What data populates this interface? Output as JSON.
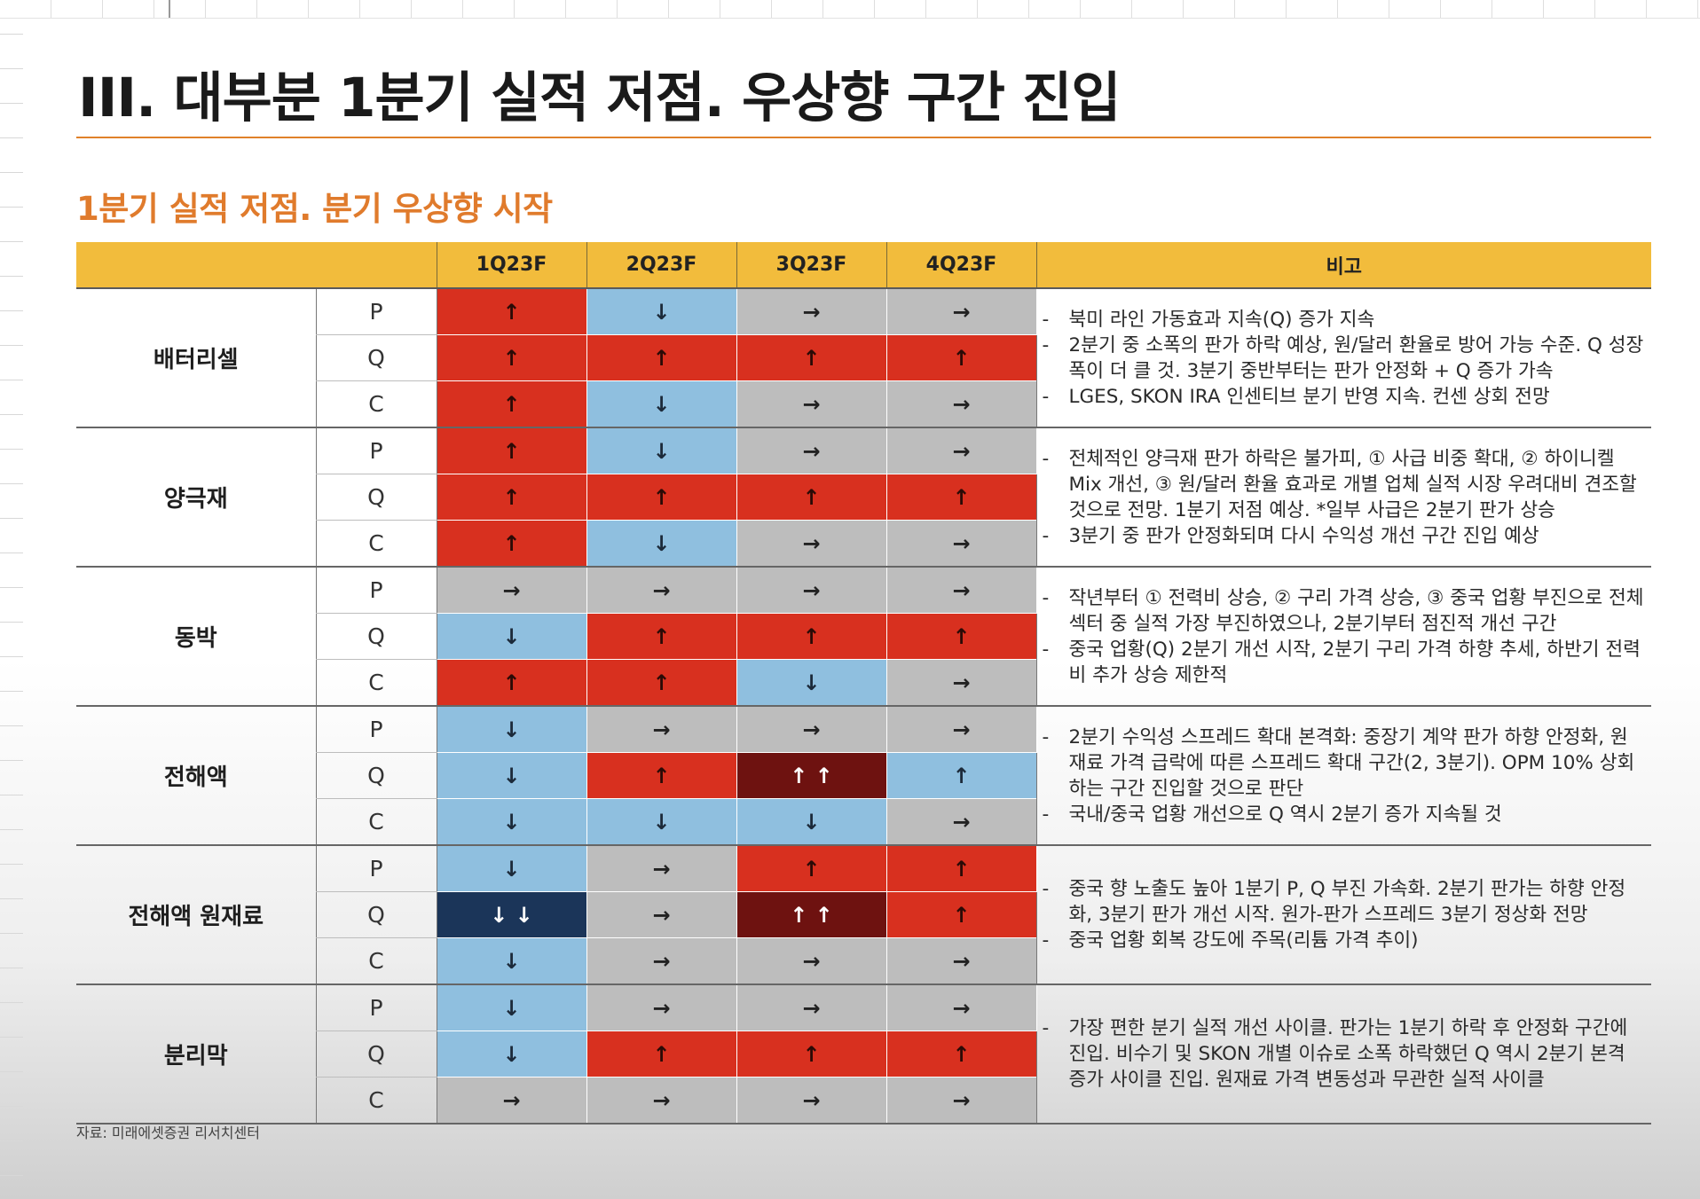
{
  "page": {
    "title": "III. 대부분 1분기 실적 저점. 우상향 구간 진입",
    "subtitle": "1분기 실적 저점. 분기 우상향 시작",
    "source": "자료: 미래에셋증권 리서치센터"
  },
  "colors": {
    "up": "#d8301f",
    "strong_up": "#6e1210",
    "down": "#8fbfdf",
    "strong_down": "#1b3559",
    "flat": "#bdbdbd",
    "header": "#f2bc3c",
    "accent": "#e07b2c"
  },
  "legend_glyphs": {
    "up": "↑",
    "strong_up": "↑ ↑",
    "down": "↓",
    "strong_down": "↓ ↓",
    "flat": "→"
  },
  "table": {
    "headers": [
      "1Q23F",
      "2Q23F",
      "3Q23F",
      "4Q23F",
      "비고"
    ],
    "groups": [
      {
        "category": "배터리셀",
        "rows": [
          {
            "metric": "P",
            "values": [
              "up",
              "down",
              "flat",
              "flat"
            ]
          },
          {
            "metric": "Q",
            "values": [
              "up",
              "up",
              "up",
              "up"
            ]
          },
          {
            "metric": "C",
            "values": [
              "up",
              "down",
              "flat",
              "flat"
            ]
          }
        ],
        "notes": [
          {
            "dash": "-",
            "text": "북미 라인 가동효과 지속(Q) 증가 지속"
          },
          {
            "dash": "-",
            "text": "2분기 중 소폭의 판가 하락 예상, 원/달러 환율로 방어 가능 수준. Q 성장 폭이 더 클 것. 3분기 중반부터는 판가 안정화 + Q 증가 가속"
          },
          {
            "dash": "-",
            "text": "LGES, SKON IRA 인센티브 분기 반영 지속. 컨센 상회 전망"
          }
        ]
      },
      {
        "category": "양극재",
        "rows": [
          {
            "metric": "P",
            "values": [
              "up",
              "down",
              "flat",
              "flat"
            ]
          },
          {
            "metric": "Q",
            "values": [
              "up",
              "up",
              "up",
              "up"
            ]
          },
          {
            "metric": "C",
            "values": [
              "up",
              "down",
              "flat",
              "flat"
            ]
          }
        ],
        "notes": [
          {
            "dash": "-",
            "text": "전체적인 양극재 판가 하락은 불가피, ① 사급 비중 확대, ② 하이니켈 Mix 개선, ③ 원/달러 환율 효과로 개별 업체 실적 시장 우려대비 견조할 것으로 전망. 1분기 저점 예상. *일부 사급은 2분기 판가 상승"
          },
          {
            "dash": "-",
            "text": "3분기 중 판가 안정화되며 다시 수익성 개선 구간 진입 예상"
          }
        ]
      },
      {
        "category": "동박",
        "rows": [
          {
            "metric": "P",
            "values": [
              "flat",
              "flat",
              "flat",
              "flat"
            ]
          },
          {
            "metric": "Q",
            "values": [
              "down",
              "up",
              "up",
              "up"
            ]
          },
          {
            "metric": "C",
            "values": [
              "up",
              "up",
              "down",
              "flat"
            ]
          }
        ],
        "notes": [
          {
            "dash": "-",
            "text": "작년부터 ① 전력비 상승, ② 구리 가격 상승, ③ 중국 업황 부진으로 전체 섹터 중 실적 가장 부진하였으나, 2분기부터 점진적 개선 구간"
          },
          {
            "dash": "-",
            "text": "중국 업황(Q) 2분기 개선 시작, 2분기 구리 가격 하향 추세, 하반기 전력비 추가 상승 제한적"
          }
        ]
      },
      {
        "category": "전해액",
        "rows": [
          {
            "metric": "P",
            "values": [
              "down",
              "flat",
              "flat",
              "flat"
            ]
          },
          {
            "metric": "Q",
            "values": [
              "down",
              "up",
              "strong_up",
              "down_up"
            ]
          },
          {
            "metric": "C",
            "values": [
              "down",
              "down",
              "down",
              "flat"
            ]
          }
        ],
        "notes": [
          {
            "dash": "-",
            "text": "2분기 수익성 스프레드 확대 본격화: 중장기 계약 판가 하향 안정화, 원재료 가격 급락에 따른 스프레드 확대 구간(2, 3분기). OPM 10% 상회하는 구간 진입할 것으로 판단"
          },
          {
            "dash": "-",
            "text": "국내/중국 업황 개선으로 Q 역시 2분기 증가 지속될 것"
          }
        ]
      },
      {
        "category": "전해액 원재료",
        "rows": [
          {
            "metric": "P",
            "values": [
              "down",
              "flat",
              "up",
              "up"
            ]
          },
          {
            "metric": "Q",
            "values": [
              "strong_down",
              "flat",
              "strong_up",
              "up"
            ]
          },
          {
            "metric": "C",
            "values": [
              "down",
              "flat",
              "flat",
              "flat"
            ]
          }
        ],
        "notes": [
          {
            "dash": "-",
            "text": "중국 향 노출도 높아 1분기 P, Q 부진 가속화. 2분기 판가는 하향 안정화, 3분기 판가 개선 시작. 원가-판가 스프레드 3분기 정상화 전망"
          },
          {
            "dash": "-",
            "text": "중국 업황 회복 강도에 주목(리튬 가격 추이)"
          }
        ]
      },
      {
        "category": "분리막",
        "rows": [
          {
            "metric": "P",
            "values": [
              "down",
              "flat",
              "flat",
              "flat"
            ]
          },
          {
            "metric": "Q",
            "values": [
              "down",
              "up",
              "up",
              "up"
            ]
          },
          {
            "metric": "C",
            "values": [
              "flat",
              "flat",
              "flat",
              "flat"
            ]
          }
        ],
        "notes": [
          {
            "dash": "-",
            "text": "가장 편한 분기 실적 개선 사이클. 판가는 1분기 하락 후 안정화 구간에 진입. 비수기 및 SKON 개별 이슈로 소폭 하락했던 Q 역시 2분기 본격 증가 사이클 진입. 원재료 가격 변동성과 무관한 실적 사이클"
          }
        ]
      }
    ]
  }
}
